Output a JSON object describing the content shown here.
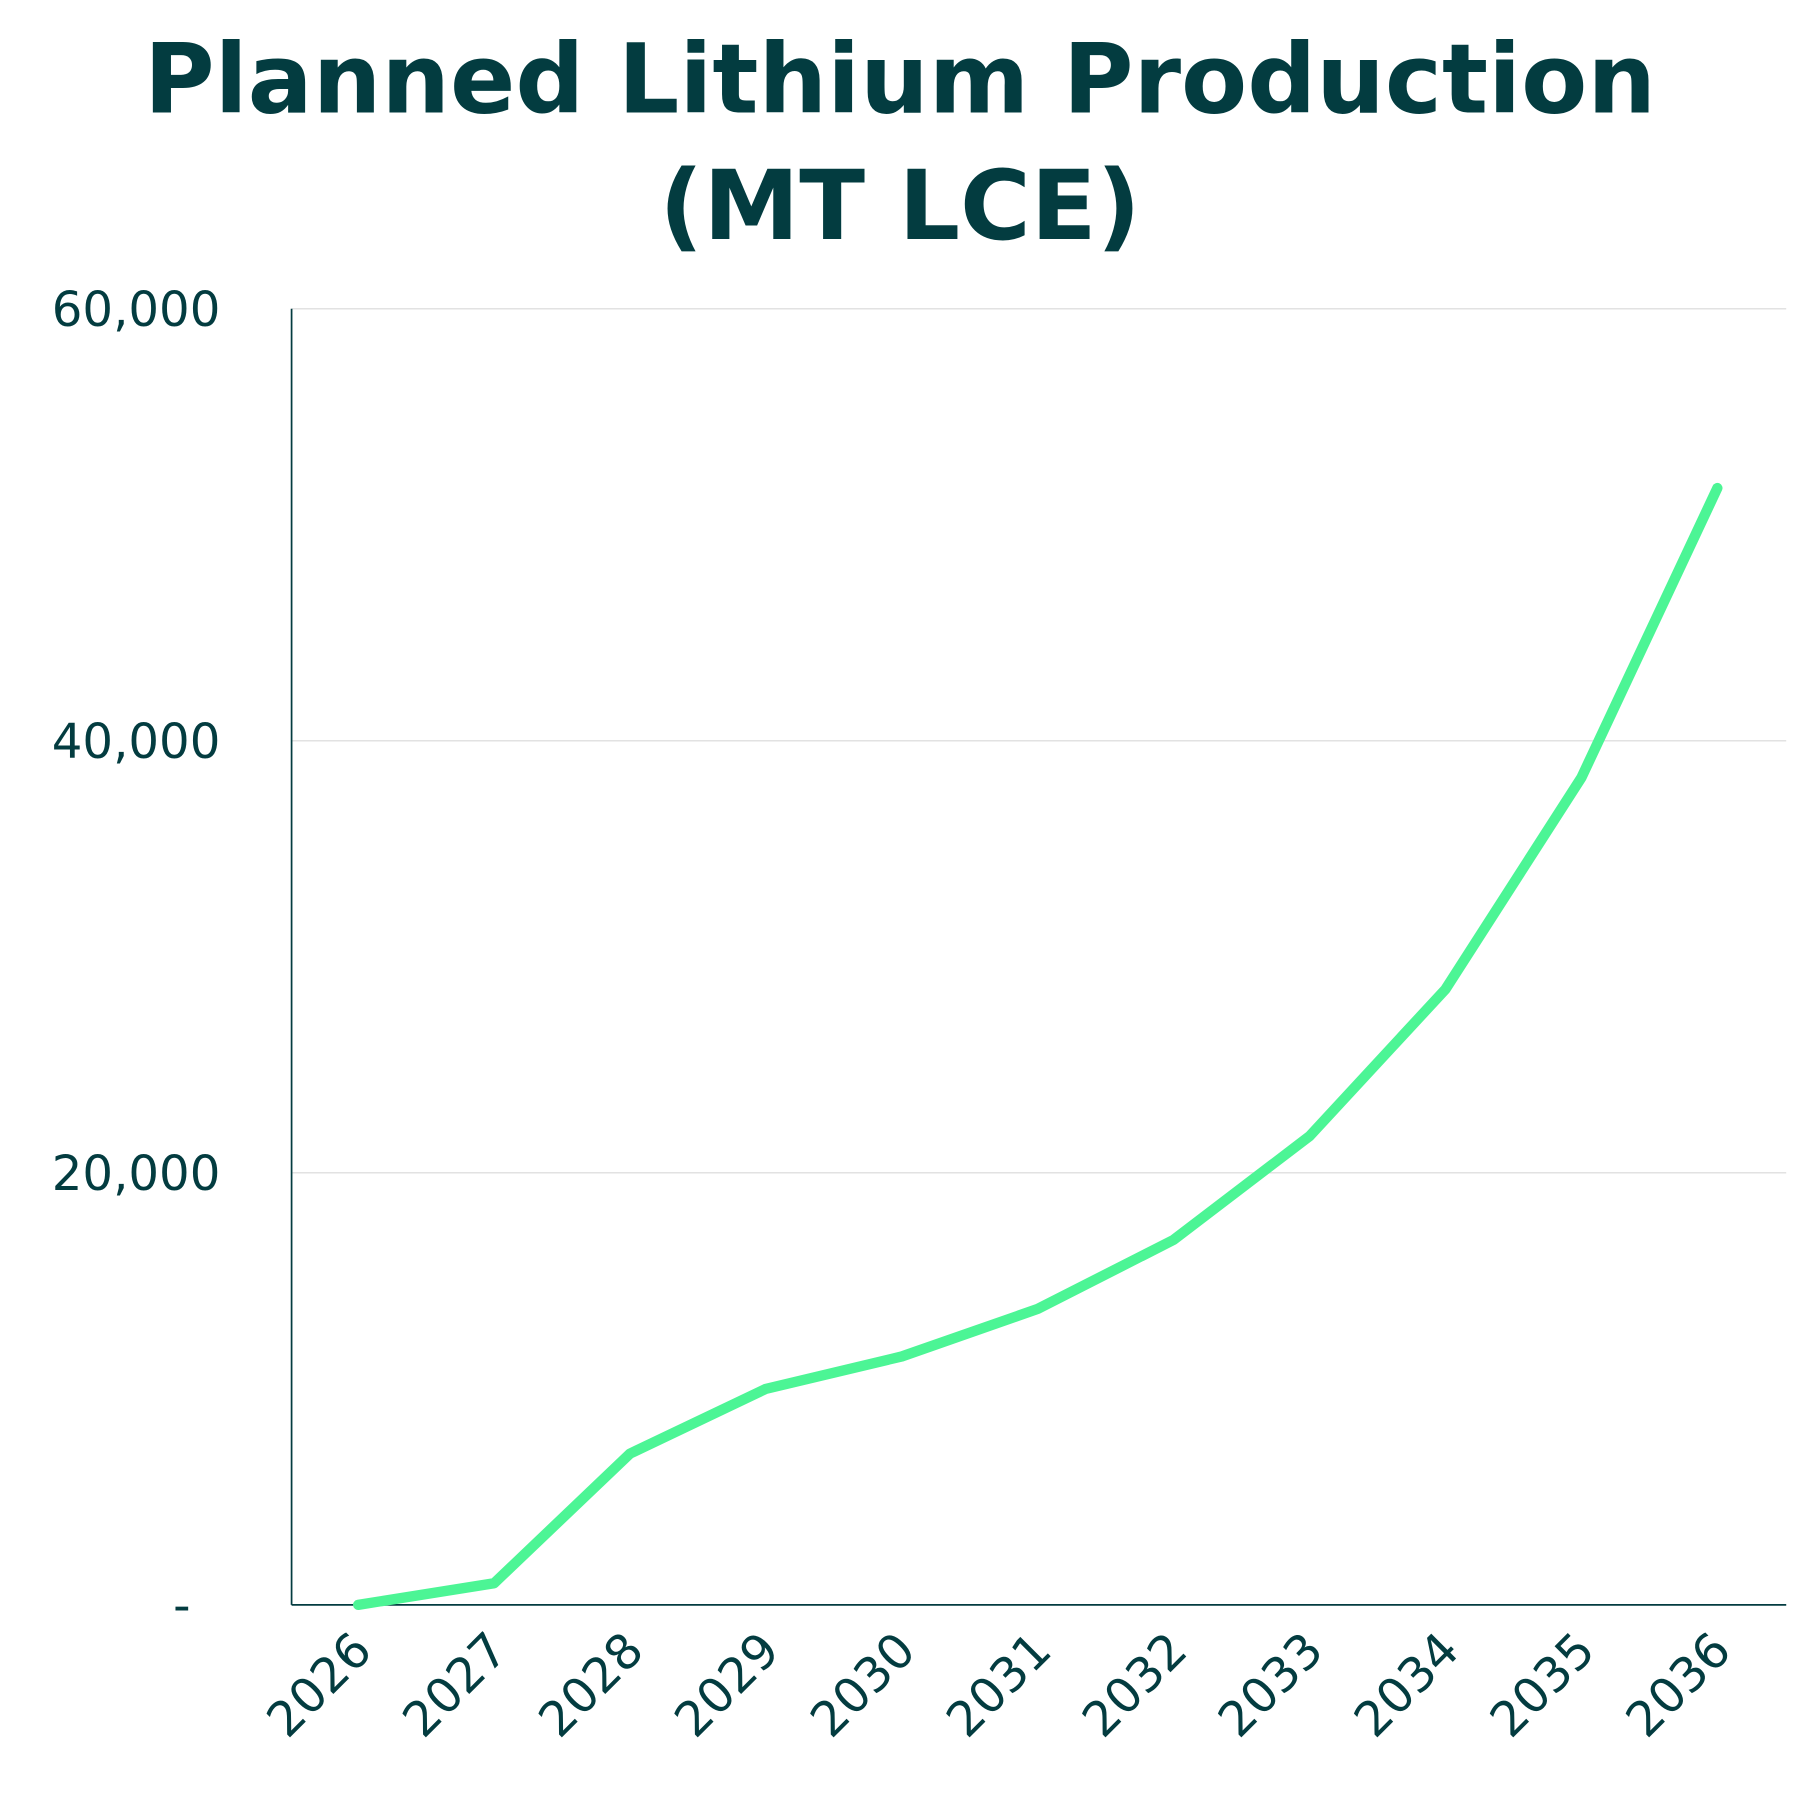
{
  "chart_data": {
    "type": "line",
    "title": [
      "Planned Lithium Production",
      "(MT LCE)"
    ],
    "xlabel": "",
    "ylabel": "",
    "categories": [
      "2026",
      "2027",
      "2028",
      "2029",
      "2030",
      "2031",
      "2032",
      "2033",
      "2034",
      "2035",
      "2036"
    ],
    "series": [
      {
        "name": "Planned Lithium Production",
        "color": "#4cf595",
        "values": [
          0,
          1000,
          7000,
          10000,
          11500,
          13700,
          16900,
          21700,
          28500,
          38300,
          51700
        ]
      }
    ],
    "ylim": [
      0,
      60000
    ],
    "yticks": [
      0,
      20000,
      40000,
      60000
    ],
    "ytick_labels": [
      "-",
      "20,000",
      "40,000",
      "60,000"
    ],
    "grid": true,
    "text_color": "#033c40"
  }
}
